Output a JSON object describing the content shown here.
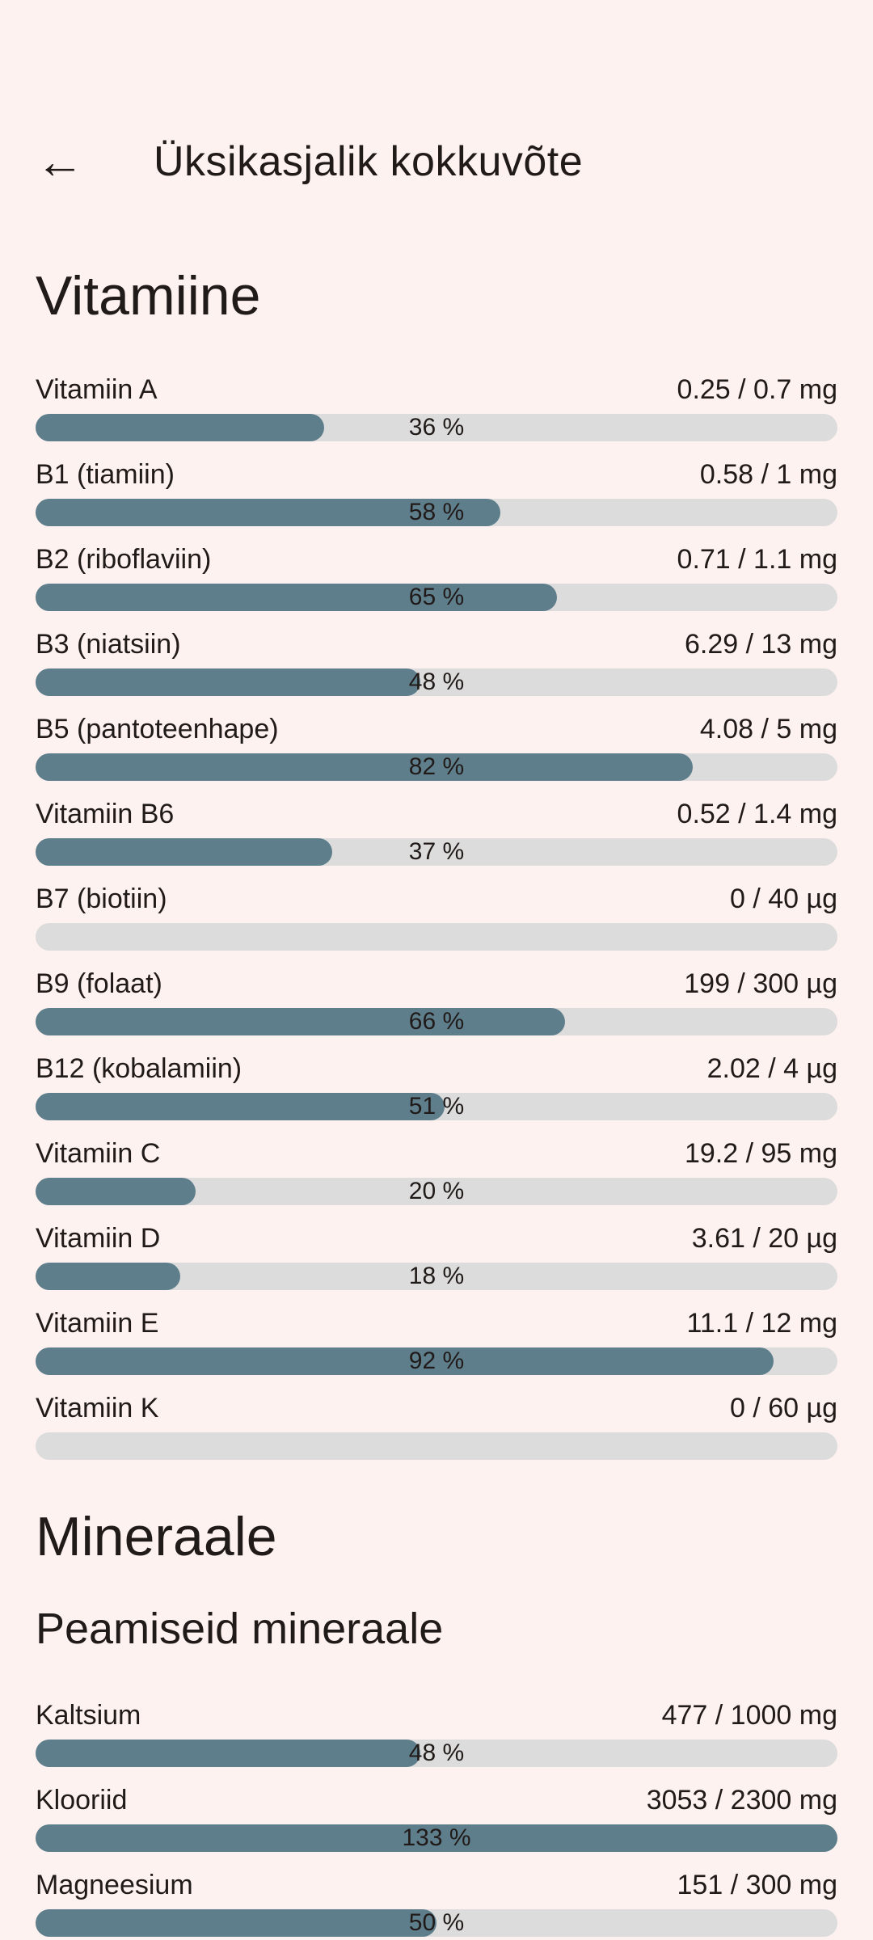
{
  "colors": {
    "background": "#fdf2ef",
    "text": "#201a19",
    "bar_fill": "#5f7e8c",
    "bar_track": "#dcdcdc"
  },
  "header": {
    "back_icon": "←",
    "title": "Üksikasjalik kokkuvõte"
  },
  "vitamins": {
    "title": "Vitamiine",
    "rows": [
      {
        "name": "Vitamiin A",
        "value": "0.25 / 0.7 mg",
        "percent": 36,
        "percent_label": "36 %"
      },
      {
        "name": "B1 (tiamiin)",
        "value": "0.58 / 1 mg",
        "percent": 58,
        "percent_label": "58 %"
      },
      {
        "name": "B2 (riboflaviin)",
        "value": "0.71 / 1.1 mg",
        "percent": 65,
        "percent_label": "65 %"
      },
      {
        "name": "B3 (niatsiin)",
        "value": "6.29 / 13 mg",
        "percent": 48,
        "percent_label": "48 %"
      },
      {
        "name": "B5 (pantoteenhape)",
        "value": "4.08 / 5 mg",
        "percent": 82,
        "percent_label": "82 %"
      },
      {
        "name": "Vitamiin B6",
        "value": "0.52 / 1.4 mg",
        "percent": 37,
        "percent_label": "37 %"
      },
      {
        "name": "B7 (biotiin)",
        "value": "0 / 40 µg",
        "percent": 0,
        "percent_label": ""
      },
      {
        "name": "B9 (folaat)",
        "value": "199 / 300 µg",
        "percent": 66,
        "percent_label": "66 %"
      },
      {
        "name": "B12 (kobalamiin)",
        "value": "2.02 / 4 µg",
        "percent": 51,
        "percent_label": "51 %"
      },
      {
        "name": "Vitamiin C",
        "value": "19.2 / 95 mg",
        "percent": 20,
        "percent_label": "20 %"
      },
      {
        "name": "Vitamiin D",
        "value": "3.61 / 20 µg",
        "percent": 18,
        "percent_label": "18 %"
      },
      {
        "name": "Vitamiin E",
        "value": "11.1 / 12 mg",
        "percent": 92,
        "percent_label": "92 %"
      },
      {
        "name": "Vitamiin K",
        "value": "0 / 60 µg",
        "percent": 0,
        "percent_label": ""
      }
    ]
  },
  "minerals": {
    "title": "Mineraale",
    "subtitle": "Peamiseid mineraale",
    "rows": [
      {
        "name": "Kaltsium",
        "value": "477 / 1000 mg",
        "percent": 48,
        "percent_label": "48 %"
      },
      {
        "name": "Klooriid",
        "value": "3053 / 2300 mg",
        "percent": 133,
        "percent_label": "133 %"
      },
      {
        "name": "Magneesium",
        "value": "151 / 300 mg",
        "percent": 50,
        "percent_label": "50 %"
      }
    ]
  }
}
